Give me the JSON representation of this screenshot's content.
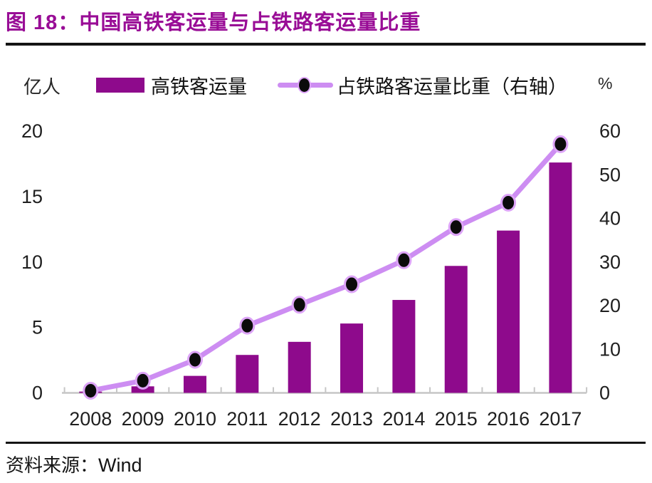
{
  "figure": {
    "title": "图 18：中国高铁客运量与占铁路客运量比重",
    "source_label": "资料来源：",
    "source_value": "Wind"
  },
  "legend": {
    "left_unit": "亿人",
    "right_unit": "%",
    "bar_label": "高铁客运量",
    "line_label": "占铁路客运量比重（右轴）"
  },
  "colors": {
    "title": "#990D96",
    "bar": "#8E0A8C",
    "line": "#CD8DF2",
    "dot_fill": "#0B0B0B",
    "dot_ring": "#DDA4F7",
    "axis": "#C6C6C6",
    "tick_text": "#1F1F1F"
  },
  "chart_data": {
    "type": "bar",
    "title": "中国高铁客运量与占铁路客运量比重",
    "categories": [
      "2008",
      "2009",
      "2010",
      "2011",
      "2012",
      "2013",
      "2014",
      "2015",
      "2016",
      "2017"
    ],
    "series": [
      {
        "name": "高铁客运量",
        "type": "bar",
        "axis": "left",
        "unit": "亿人",
        "values": [
          0.1,
          0.5,
          1.3,
          2.9,
          3.9,
          5.3,
          7.1,
          9.7,
          12.4,
          17.6
        ]
      },
      {
        "name": "占铁路客运量比重（右轴）",
        "type": "line",
        "axis": "right",
        "unit": "%",
        "values": [
          0.5,
          2.8,
          7.6,
          15.4,
          20.2,
          24.9,
          30.4,
          38.0,
          43.6,
          57.0
        ]
      }
    ],
    "left_axis": {
      "label": "亿人",
      "range": [
        0,
        20
      ],
      "ticks": [
        0,
        5,
        10,
        15,
        20
      ]
    },
    "right_axis": {
      "label": "%",
      "range": [
        0,
        60
      ],
      "ticks": [
        0,
        10,
        20,
        30,
        40,
        50,
        60
      ]
    },
    "grid": false,
    "legend_position": "top"
  }
}
